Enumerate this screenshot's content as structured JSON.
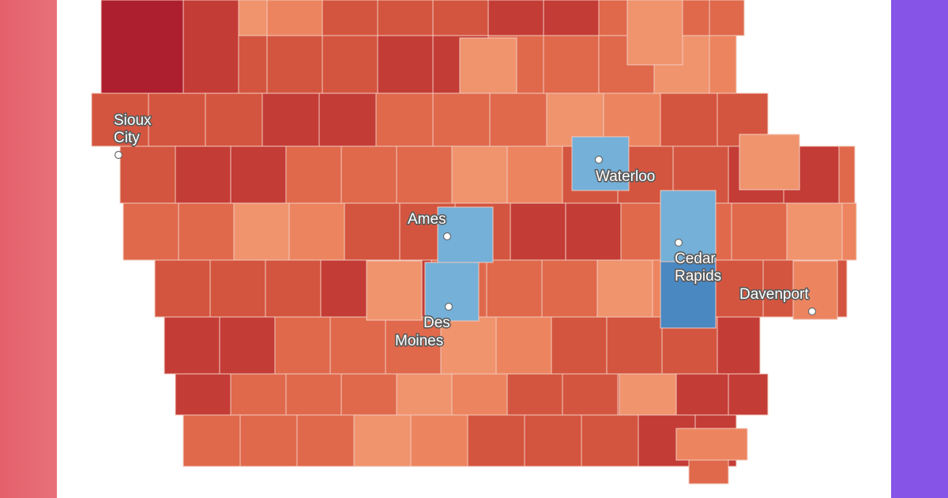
{
  "map": {
    "region": "Iowa counties",
    "legend_colors": {
      "dark_red": "#ad1f2e",
      "red": "#c43c36",
      "medium_red": "#d4553f",
      "light_red": "#e0694c",
      "salmon": "#ec855f",
      "light_salmon": "#f0946e",
      "light_blue": "#74b0d8",
      "blue": "#4a88c2"
    },
    "cities": [
      {
        "key": "sioux_city",
        "lines": [
          "Sioux",
          "City"
        ]
      },
      {
        "key": "waterloo",
        "lines": [
          "Waterloo"
        ]
      },
      {
        "key": "ames",
        "lines": [
          "Ames"
        ]
      },
      {
        "key": "cedar_rapids",
        "lines": [
          "Cedar",
          "Rapids"
        ]
      },
      {
        "key": "des_moines",
        "lines": [
          "Des",
          "Moines"
        ]
      },
      {
        "key": "davenport",
        "lines": [
          "Davenport"
        ]
      }
    ]
  }
}
